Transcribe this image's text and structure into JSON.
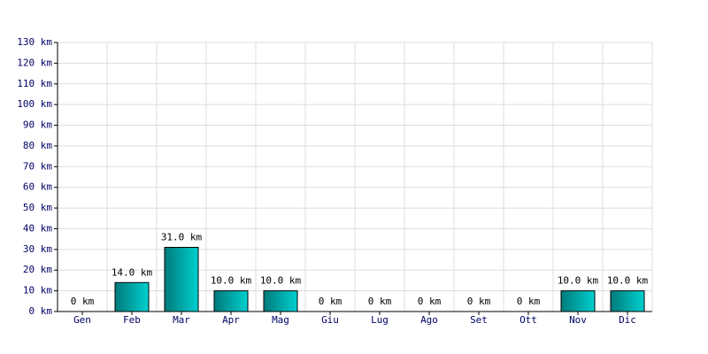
{
  "chart_data": {
    "type": "bar",
    "categories": [
      "Gen",
      "Feb",
      "Mar",
      "Apr",
      "Mag",
      "Giu",
      "Lug",
      "Ago",
      "Set",
      "Ott",
      "Nov",
      "Dic"
    ],
    "values": [
      0,
      14,
      31,
      10,
      10,
      0,
      0,
      0,
      0,
      0,
      10,
      10
    ],
    "value_labels": [
      "0 km",
      "14.0 km",
      "31.0 km",
      "10.0 km",
      "10.0 km",
      "0 km",
      "0 km",
      "0 km",
      "0 km",
      "0 km",
      "10.0 km",
      "10.0 km"
    ],
    "color": "#00d0d0",
    "ylim": [
      0,
      130
    ],
    "yticks": [
      {
        "value": 0,
        "label": "0 km"
      },
      {
        "value": 10,
        "label": "10 km"
      },
      {
        "value": 20,
        "label": "20 km"
      },
      {
        "value": 30,
        "label": "30 km"
      },
      {
        "value": 40,
        "label": "40 km"
      },
      {
        "value": 50,
        "label": "50 km"
      },
      {
        "value": 60,
        "label": "60 km"
      },
      {
        "value": 70,
        "label": "70 km"
      },
      {
        "value": 80,
        "label": "80 km"
      },
      {
        "value": 90,
        "label": "90 km"
      },
      {
        "value": 100,
        "label": "100 km"
      },
      {
        "value": 110,
        "label": "110 km"
      },
      {
        "value": 120,
        "label": "120 km"
      },
      {
        "value": 130,
        "label": "130 km"
      }
    ],
    "grid": true
  }
}
